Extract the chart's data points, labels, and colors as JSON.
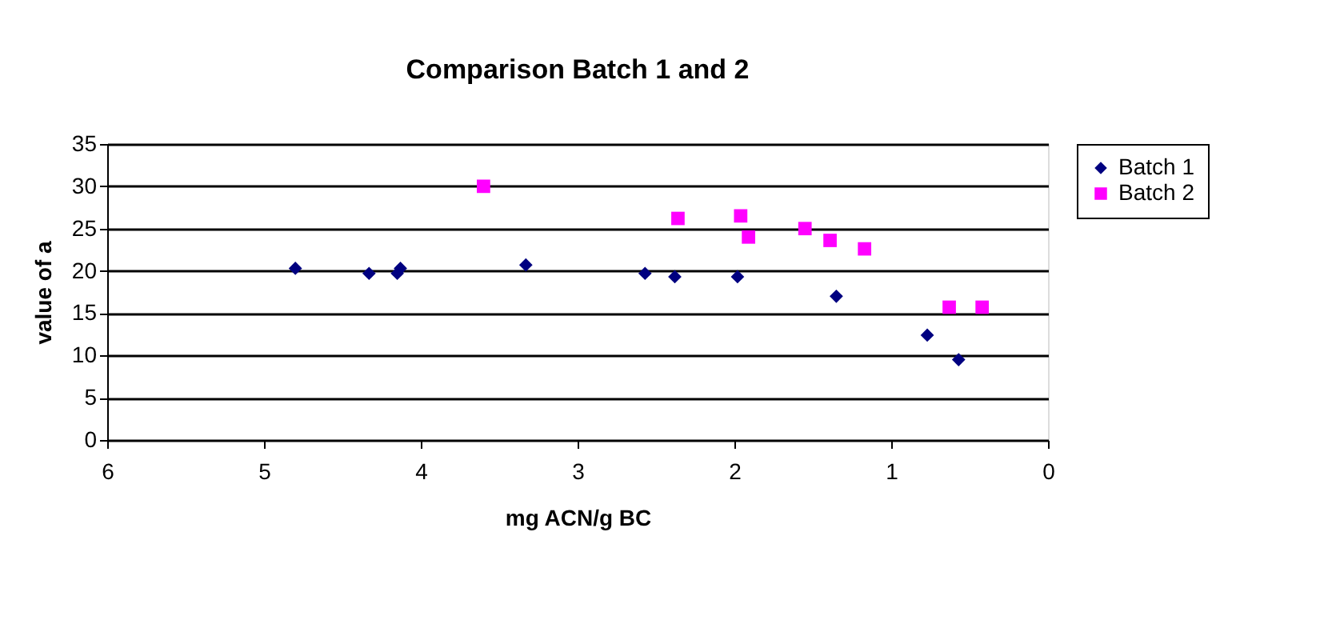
{
  "chart_data": {
    "type": "scatter",
    "title": "Comparison Batch 1 and 2",
    "xlabel": "mg ACN/g BC",
    "ylabel": "value of a",
    "xlim": [
      6,
      0
    ],
    "xticks": [
      6,
      5,
      4,
      3,
      2,
      1,
      0
    ],
    "ylim": [
      0,
      35
    ],
    "yticks": [
      0,
      5,
      10,
      15,
      20,
      25,
      30,
      35
    ],
    "grid": "y",
    "legend": "right",
    "series": [
      {
        "name": "Batch 1",
        "color": "#000080",
        "marker": "diamond",
        "x": [
          4.8,
          4.33,
          4.15,
          4.13,
          3.33,
          2.57,
          2.38,
          1.98,
          1.35,
          0.77,
          0.57
        ],
        "values": [
          20.3,
          19.7,
          19.7,
          20.3,
          20.7,
          19.7,
          19.3,
          19.3,
          17,
          12.4,
          9.5
        ]
      },
      {
        "name": "Batch 2",
        "color": "#ff00ff",
        "marker": "square",
        "x": [
          3.6,
          2.36,
          1.96,
          1.91,
          1.55,
          1.39,
          1.17,
          0.63,
          0.42
        ],
        "values": [
          30,
          26.2,
          26.5,
          24,
          25,
          23.6,
          22.6,
          15.7,
          15.7
        ]
      }
    ]
  }
}
